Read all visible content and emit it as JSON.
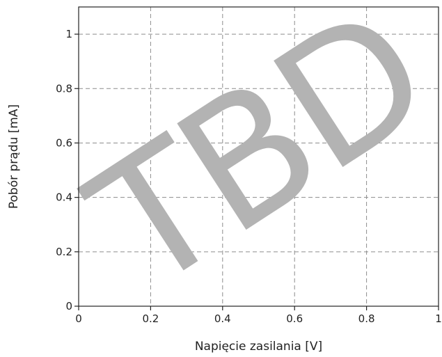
{
  "chart_data": {
    "type": "line",
    "title": "",
    "xlabel": "Napięcie zasilania [V]",
    "ylabel": "Pobór prądu [mA]",
    "xlim": [
      0,
      1.0
    ],
    "ylim": [
      0,
      1.1
    ],
    "x_ticks": [
      "0",
      "0.2",
      "0.4",
      "0.6",
      "0.8",
      "1"
    ],
    "y_ticks": [
      "0",
      "0.2",
      "0.4",
      "0.6",
      "0.8",
      "1"
    ],
    "grid": true,
    "grid_style": "dashed",
    "series": [],
    "watermark": "TBD"
  }
}
